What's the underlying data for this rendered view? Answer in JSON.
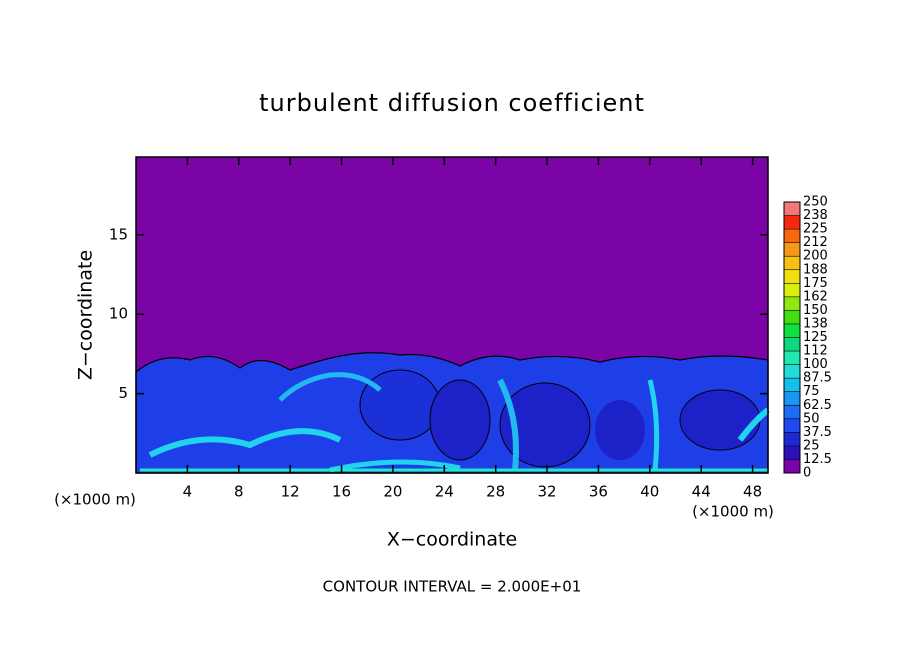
{
  "chart_data": {
    "type": "contour",
    "title": "turbulent diffusion coefficient",
    "xlabel": "X−coordinate",
    "ylabel": "Z−coordinate",
    "x_unit": "(×1000 m)",
    "y_unit": "(×1000 m)",
    "note": "CONTOUR INTERVAL = 2.000E+01",
    "xlim": [
      0,
      49.2
    ],
    "xticks": [
      4,
      8,
      12,
      16,
      20,
      24,
      28,
      32,
      36,
      40,
      44,
      48
    ],
    "ylim": [
      0,
      19.9
    ],
    "yticks": [
      5,
      10,
      15
    ],
    "colorbar": {
      "levels": [
        0,
        12.5,
        25,
        37.5,
        50,
        62.5,
        75,
        87.5,
        100,
        112,
        125,
        138,
        150,
        162,
        175,
        188,
        200,
        212,
        225,
        238,
        250
      ],
      "colors": [
        "#7a04a6",
        "#2a10b8",
        "#1c2ad6",
        "#1e4af0",
        "#1e6cf4",
        "#1896f0",
        "#12c0ec",
        "#20dcd8",
        "#22e8b0",
        "#10d880",
        "#10e040",
        "#40e010",
        "#90e810",
        "#d8f010",
        "#f0e010",
        "#f8c010",
        "#f89818",
        "#f86810",
        "#f82810",
        "#f07878"
      ]
    }
  }
}
